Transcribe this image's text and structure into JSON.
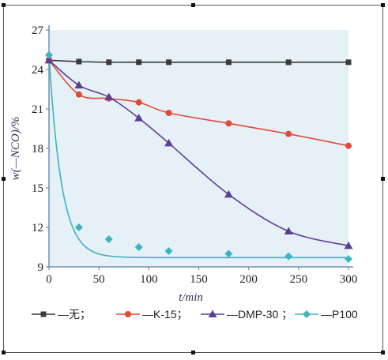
{
  "chart_data": {
    "type": "line",
    "xlabel": "t/min",
    "ylabel": "w(—NCO)/%",
    "xlim": [
      0,
      300
    ],
    "ylim": [
      9,
      27
    ],
    "xticks": [
      0,
      50,
      100,
      150,
      200,
      250,
      300
    ],
    "yticks": [
      9,
      12,
      15,
      18,
      21,
      24,
      27
    ],
    "grid": false,
    "legend_position": "bottom",
    "background_color": "#e6f0f7",
    "axis_color": "#6a8fb0",
    "series": [
      {
        "name": "无",
        "legend_label": "—无；",
        "marker": "square",
        "color": "#3a3a3a",
        "x": [
          0,
          30,
          60,
          90,
          120,
          180,
          240,
          300
        ],
        "y": [
          24.7,
          24.6,
          24.55,
          24.55,
          24.55,
          24.55,
          24.55,
          24.55
        ]
      },
      {
        "name": "K-15",
        "legend_label": "—K-15；",
        "marker": "circle",
        "color": "#e04a3a",
        "x": [
          0,
          30,
          60,
          90,
          120,
          180,
          240,
          300
        ],
        "y": [
          24.7,
          22.1,
          21.8,
          21.5,
          20.7,
          19.9,
          19.1,
          18.2
        ]
      },
      {
        "name": "DMP-30",
        "legend_label": "—DMP-30 ；",
        "marker": "triangle",
        "color": "#5a3f95",
        "x": [
          0,
          30,
          60,
          90,
          120,
          180,
          240,
          300
        ],
        "y": [
          24.7,
          22.8,
          21.9,
          20.3,
          18.4,
          14.5,
          11.7,
          10.6
        ]
      },
      {
        "name": "P100",
        "legend_label": "—P100",
        "marker": "diamond",
        "color": "#3fb4c0",
        "x": [
          0,
          30,
          60,
          90,
          120,
          180,
          240,
          300
        ],
        "y": [
          25.1,
          12.0,
          11.1,
          10.5,
          10.2,
          10.0,
          9.8,
          9.6
        ]
      }
    ]
  }
}
